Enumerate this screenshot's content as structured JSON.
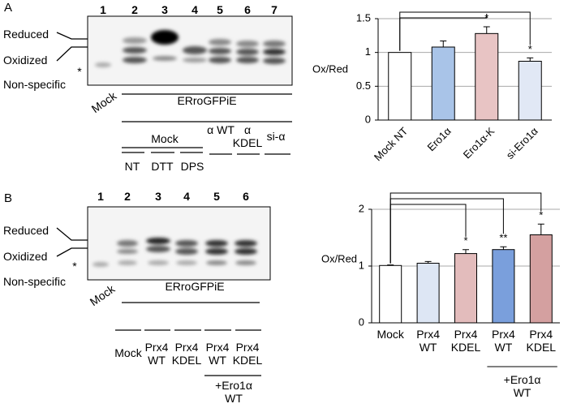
{
  "blots": [
    {
      "label": "A",
      "lanes": [
        "1",
        "2",
        "3",
        "4",
        "5",
        "6",
        "7"
      ],
      "bands": [
        "Reduced",
        "Oxidized",
        "Non-specific"
      ],
      "nonspecific_mark": "*",
      "mock": "Mock",
      "construct": "ERroGFPiE",
      "group": "Mock",
      "conditions": [
        "NT",
        "DTT",
        "DPS",
        "α WT",
        "α KDEL",
        "si-α"
      ]
    },
    {
      "label": "B",
      "lanes": [
        "1",
        "2",
        "3",
        "4",
        "5",
        "6"
      ],
      "bands": [
        "Reduced",
        "Oxidized",
        "Non-specific"
      ],
      "nonspecific_mark": "*",
      "mock": "Mock",
      "construct": "ERroGFPiE",
      "conditions": [
        "Mock",
        "Prx4 WT",
        "Prx4 KDEL",
        "Prx4 WT",
        "Prx4 KDEL"
      ],
      "group": "+Ero1α WT"
    }
  ],
  "chart_data": [
    {
      "type": "bar",
      "y_label": "Ox/Red",
      "categories": [
        "Mock NT",
        "Ero1α",
        "Ero1α-K",
        "si-Ero1α"
      ],
      "values": [
        1.0,
        1.08,
        1.28,
        0.87
      ],
      "errors": [
        null,
        0.09,
        0.1,
        0.05
      ],
      "colors": [
        "#ffffff",
        "#a9c4e8",
        "#e8c4c4",
        "#e1e8f5"
      ],
      "ylim": [
        0,
        1.5
      ],
      "yticks": [
        0,
        0.5,
        1,
        1.5
      ],
      "grid": true,
      "pairs": [
        [
          0,
          2
        ],
        [
          0,
          3
        ]
      ],
      "pair_labels": [
        "*",
        "*"
      ]
    },
    {
      "type": "bar",
      "y_label": "Ox/Red",
      "categories": [
        "Mock",
        "Prx4 WT",
        "Prx4 KDEL",
        "Prx4 WT",
        "Prx4 KDEL"
      ],
      "values": [
        1.01,
        1.05,
        1.22,
        1.29,
        1.55
      ],
      "errors": [
        0.01,
        0.03,
        0.07,
        0.05,
        0.19
      ],
      "colors": [
        "#ffffff",
        "#dde6f4",
        "#e3bcbc",
        "#7a9fdc",
        "#d4a0a0"
      ],
      "ylim": [
        0,
        2
      ],
      "yticks": [
        0,
        1,
        2
      ],
      "grid": true,
      "pairs": [
        [
          0,
          2
        ],
        [
          0,
          3
        ],
        [
          0,
          4
        ]
      ],
      "pair_labels": [
        "*",
        "**",
        "*"
      ],
      "group_label": "+Ero1α WT",
      "group_categories": [
        3,
        4
      ]
    }
  ]
}
